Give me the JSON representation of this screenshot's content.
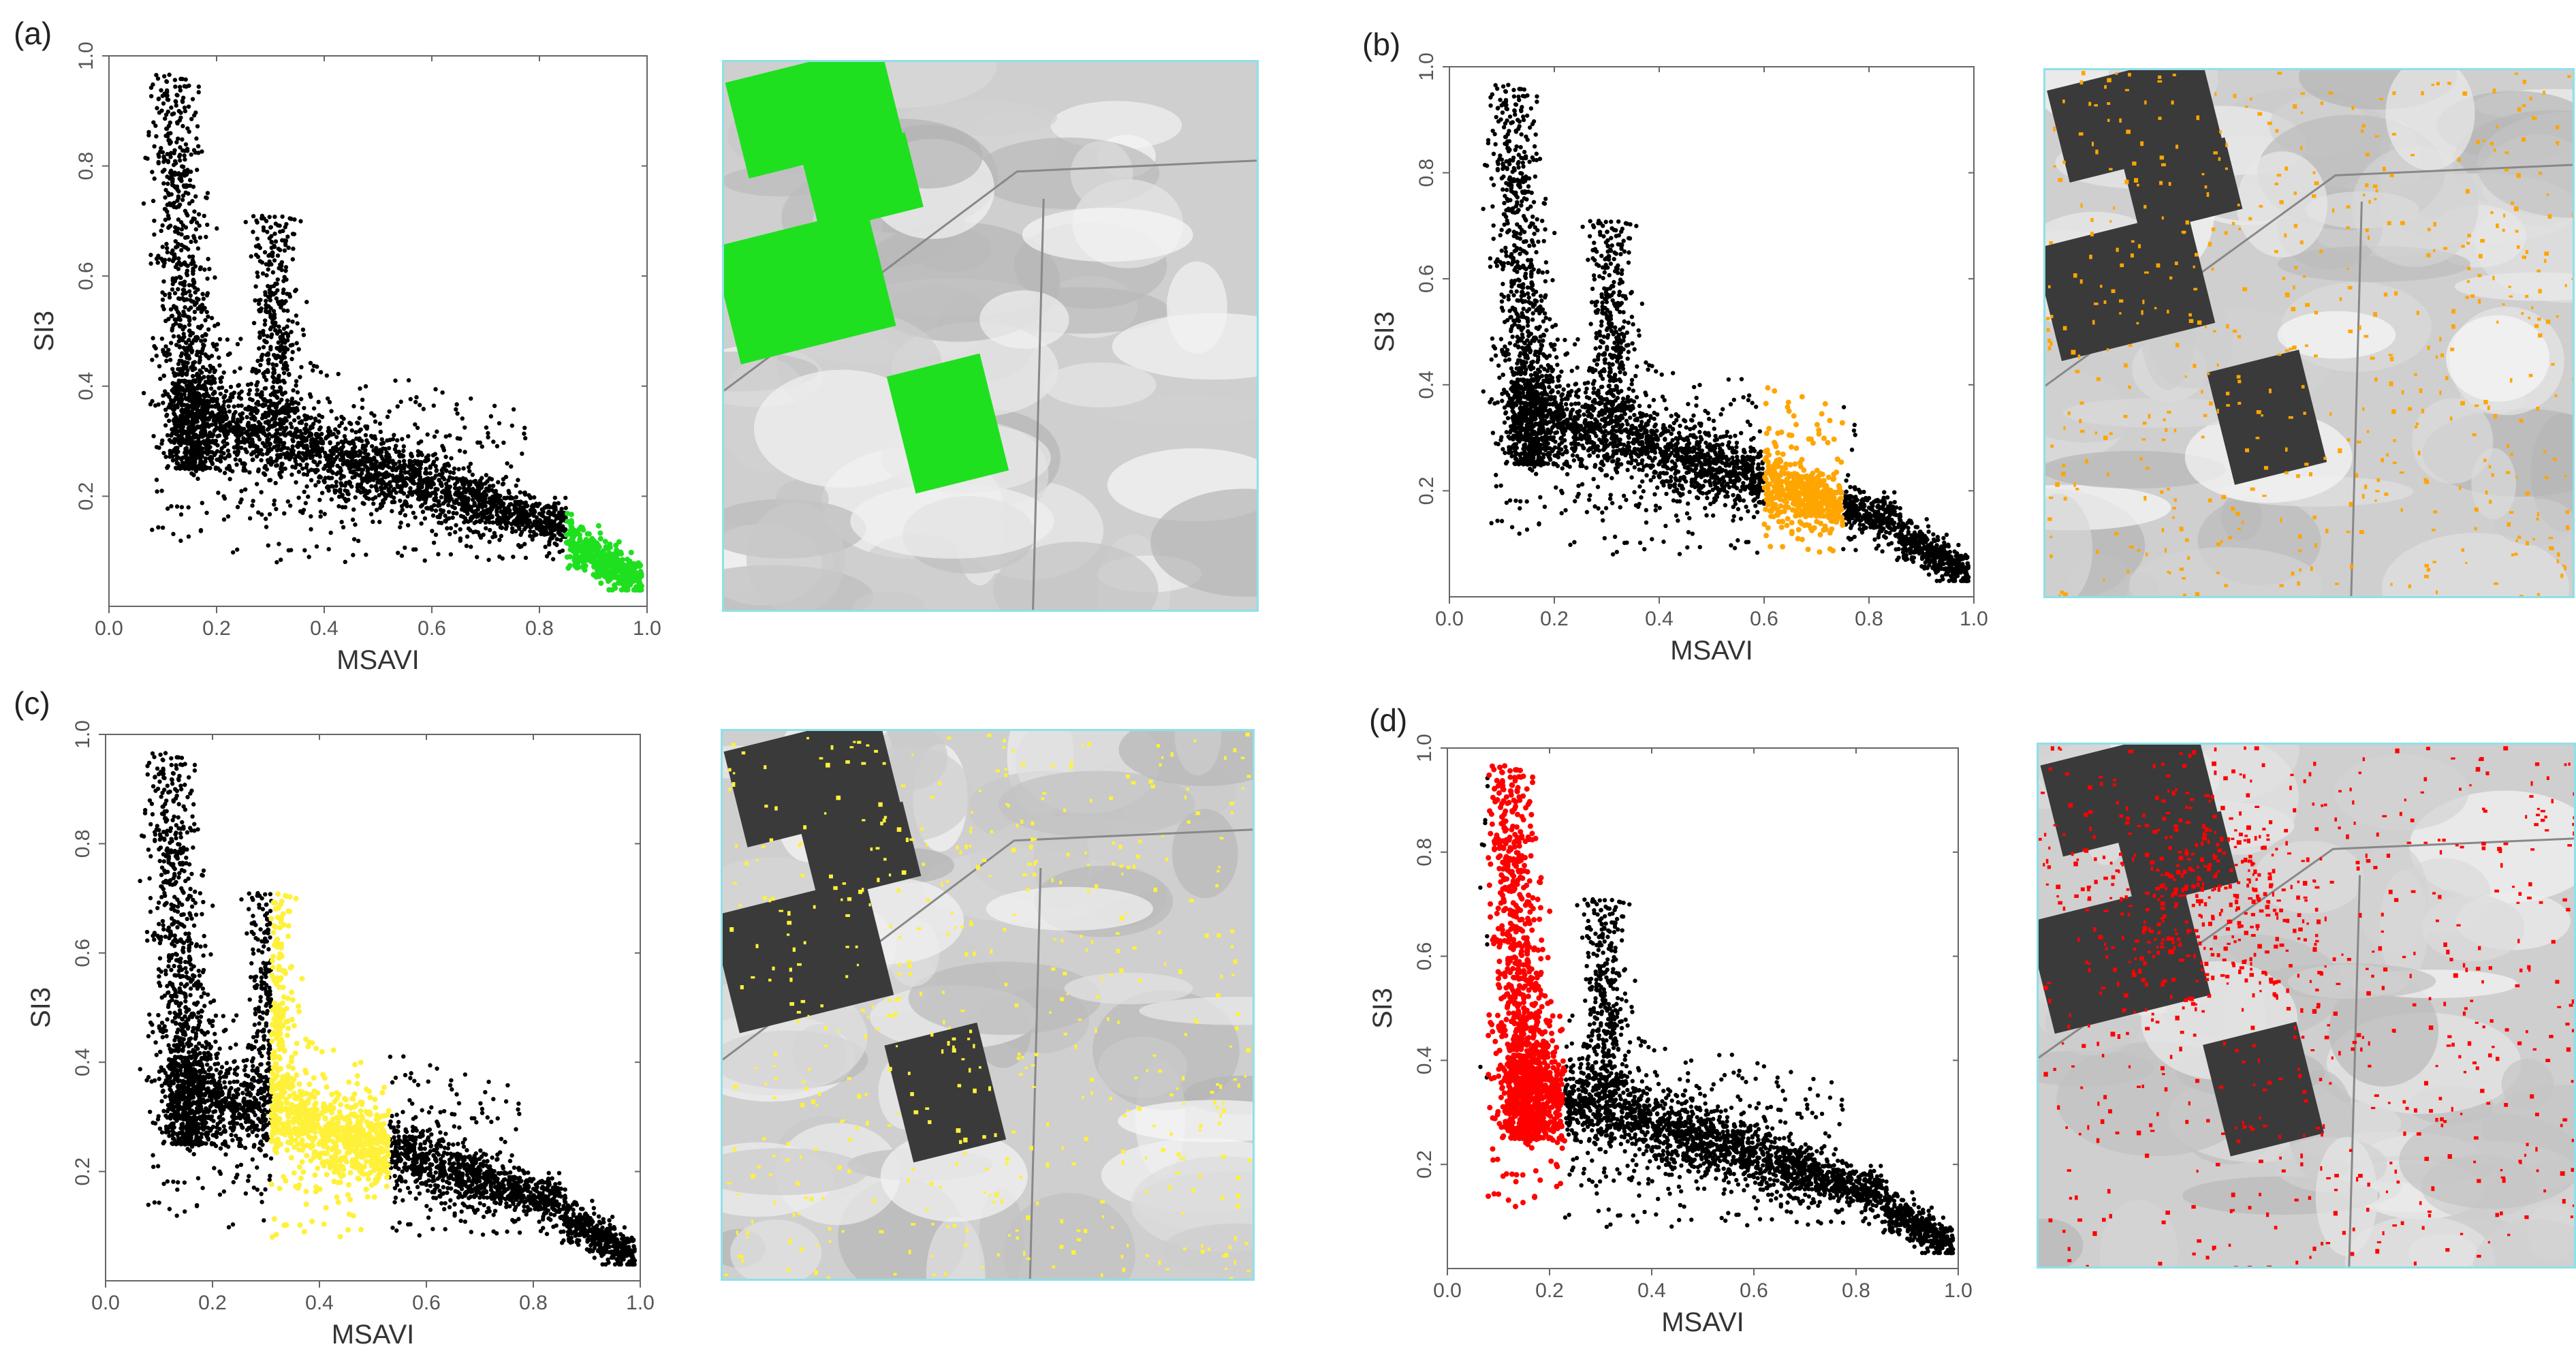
{
  "panels": [
    {
      "label": "(a)",
      "highlight_color": "#1fe01f"
    },
    {
      "label": "(b)",
      "highlight_color": "#ffa500"
    },
    {
      "label": "(c)",
      "highlight_color": "#fff13a"
    },
    {
      "label": "(d)",
      "highlight_color": "#ff0000"
    }
  ],
  "chart_data": [
    {
      "type": "scatter",
      "xlabel": "MSAVI",
      "ylabel": "SI3",
      "xlim": [
        0,
        1
      ],
      "ylim": [
        0,
        1
      ],
      "xticks": [
        "0.0",
        "0.2",
        "0.4",
        "0.6",
        "0.8",
        "1.0"
      ],
      "yticks": [
        "0.2",
        "0.4",
        "0.6",
        "0.8",
        "1.0"
      ],
      "series": [
        {
          "values": "point cloud",
          "color": "#000000"
        },
        {
          "color": "#1fe01f",
          "x_range": [
            0.85,
            1.0
          ]
        }
      ]
    },
    {
      "type": "scatter",
      "xlabel": "MSAVI",
      "ylabel": "SI3",
      "xlim": [
        0,
        1
      ],
      "ylim": [
        0,
        1
      ],
      "xticks": [
        "0.0",
        "0.2",
        "0.4",
        "0.6",
        "0.8",
        "1.0"
      ],
      "yticks": [
        "0.2",
        "0.4",
        "0.6",
        "0.8",
        "1.0"
      ],
      "series": [
        {
          "color": "#000000"
        },
        {
          "color": "#ffa500",
          "x_range": [
            0.6,
            0.75
          ]
        }
      ]
    },
    {
      "type": "scatter",
      "xlabel": "MSAVI",
      "ylabel": "SI3",
      "xlim": [
        0,
        1
      ],
      "ylim": [
        0,
        1
      ],
      "xticks": [
        "0.0",
        "0.2",
        "0.4",
        "0.6",
        "0.8",
        "1.0"
      ],
      "yticks": [
        "0.2",
        "0.4",
        "0.6",
        "0.8",
        "1.0"
      ],
      "series": [
        {
          "color": "#000000"
        },
        {
          "color": "#fff13a",
          "x_range": [
            0.31,
            0.53
          ]
        }
      ]
    },
    {
      "type": "scatter",
      "xlabel": "MSAVI",
      "ylabel": "SI3",
      "xlim": [
        0,
        1
      ],
      "ylim": [
        0,
        1
      ],
      "xticks": [
        "0.0",
        "0.2",
        "0.4",
        "0.6",
        "0.8",
        "1.0"
      ],
      "yticks": [
        "0.2",
        "0.4",
        "0.6",
        "0.8",
        "1.0"
      ],
      "series": [
        {
          "color": "#000000"
        },
        {
          "color": "#ff0000",
          "x_range": [
            0.08,
            0.23
          ]
        }
      ]
    }
  ]
}
